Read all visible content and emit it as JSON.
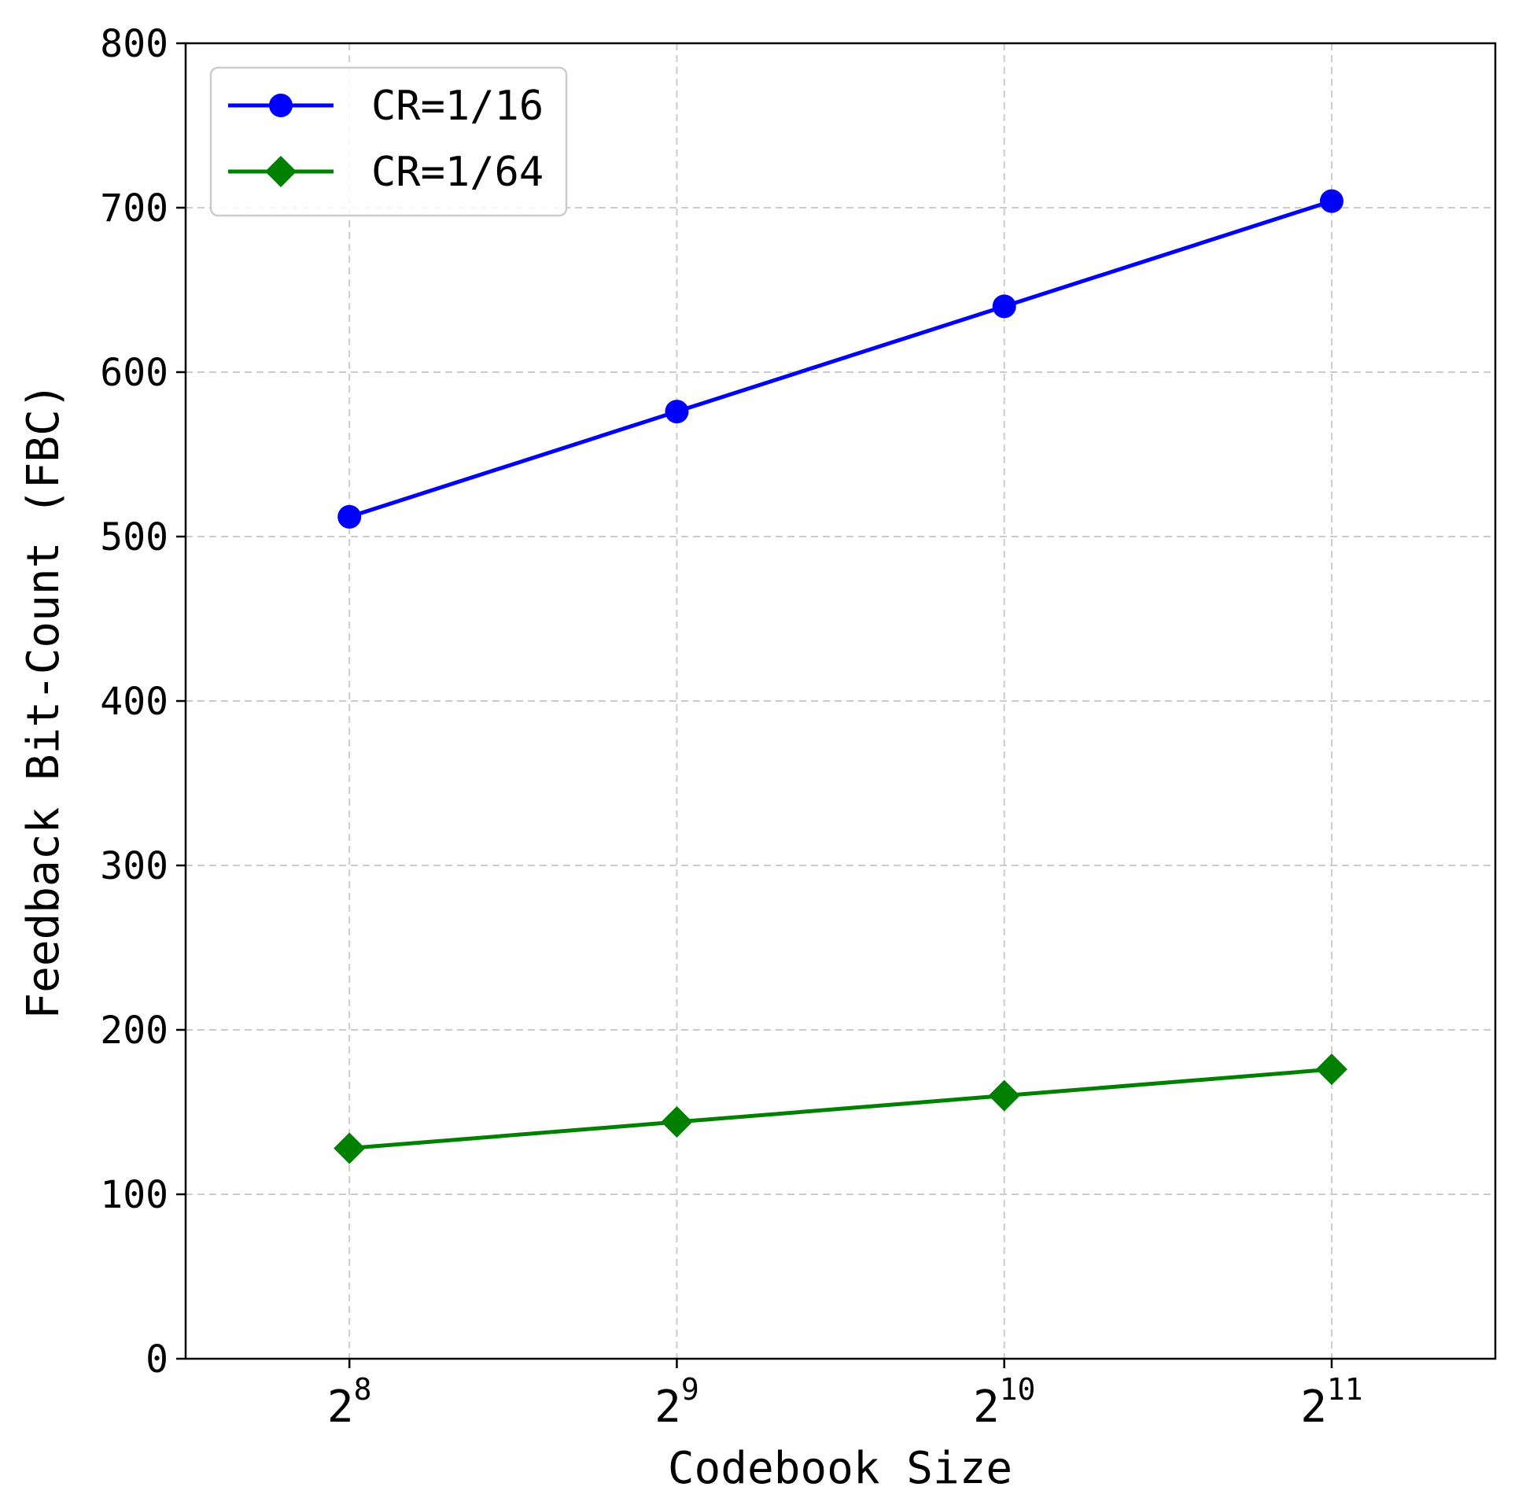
{
  "chart_data": {
    "type": "line",
    "xlabel": "Codebook Size",
    "ylabel": "Feedback Bit-Count (FBC)",
    "x_tick_labels": [
      {
        "base": "2",
        "exp": "8"
      },
      {
        "base": "2",
        "exp": "9"
      },
      {
        "base": "2",
        "exp": "10"
      },
      {
        "base": "2",
        "exp": "11"
      }
    ],
    "x": [
      256,
      512,
      1024,
      2048
    ],
    "x_scale": "log2",
    "xlim": [
      181,
      2896
    ],
    "ylim": [
      0,
      800
    ],
    "yticks": [
      0,
      100,
      200,
      300,
      400,
      500,
      600,
      700,
      800
    ],
    "grid": true,
    "legend_position": "top-left",
    "series": [
      {
        "name": "CR=1/16",
        "color": "#0000ff",
        "marker": "circle",
        "values": [
          512,
          576,
          640,
          704
        ]
      },
      {
        "name": "CR=1/64",
        "color": "#008000",
        "marker": "diamond",
        "values": [
          128,
          144,
          160,
          176
        ]
      }
    ]
  }
}
